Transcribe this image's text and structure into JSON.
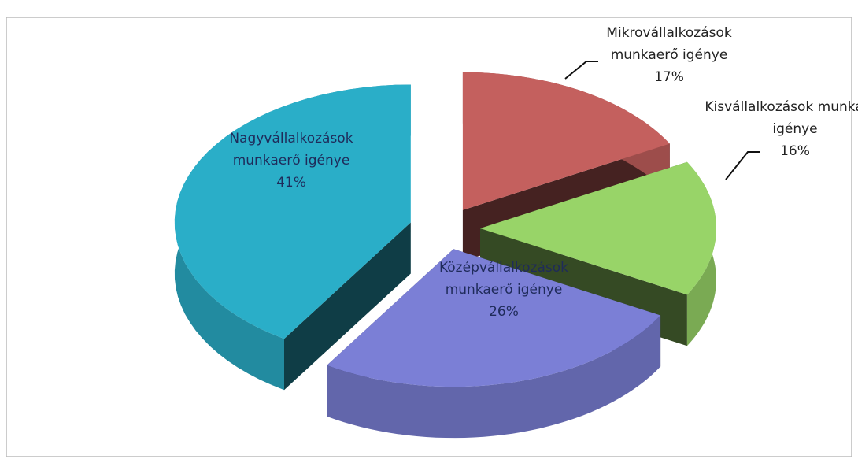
{
  "chart_data": {
    "type": "pie",
    "categories": [
      "Mikrovállalkozások munkaerő igénye",
      "Kisvállalkozások munkaerő igénye",
      "Középvállalkozások munkaerő igénye",
      "Nagyvállalkozások munkaerő igénye"
    ],
    "values": [
      17,
      16,
      26,
      41
    ],
    "value_labels": [
      "17%",
      "16%",
      "26%",
      "41%"
    ],
    "colors": [
      "#c4605e",
      "#98d468",
      "#7b7fd6",
      "#2aaec8"
    ]
  }
}
